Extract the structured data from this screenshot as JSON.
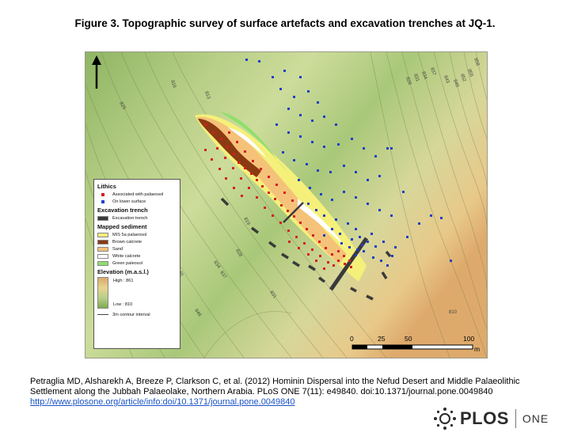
{
  "title": "Figure 3. Topographic survey of surface artefacts and excavation trenches at JQ-1.",
  "legend": {
    "lithics_header": "Lithics",
    "assoc_label": "Associated with palaeosol",
    "lower_label": "On lower surface",
    "trench_header": "Excavation trench",
    "trench_label": "Excavation trench",
    "sediment_header": "Mapped sediment",
    "sediments": [
      "MIS 5a palaeosol",
      "Brown calcrete",
      "Sand",
      "White calcrete",
      "Green paleosol"
    ],
    "elevation_header": "Elevation (m.a.s.l.)",
    "high_label": "High : 861",
    "low_label": "Low : 810",
    "contour_label": "3m contour interval"
  },
  "scale": {
    "ticks": [
      "0",
      "25",
      "50",
      "100"
    ],
    "unit": "m"
  },
  "contour_labels": [
    "816",
    "813",
    "825",
    "819",
    "828",
    "834",
    "837",
    "840",
    "831",
    "846",
    "810",
    "858",
    "855",
    "852",
    "849",
    "843",
    "837",
    "834",
    "831",
    "828"
  ],
  "colors": {
    "associated": "#d42020",
    "lower": "#1f3fc8",
    "mis5a": "#f5f07a",
    "brown_calcrete": "#8b3a12",
    "sand": "#f5c27a",
    "white_calcrete": "#ffffff",
    "green_paleosol": "#8ee06a",
    "trench": "#3a3a3a"
  },
  "citation": "Petraglia MD, Alsharekh A, Breeze P, Clarkson C, et al. (2012) Hominin Dispersal into the Nefud Desert and Middle Palaeolithic Settlement along the Jubbah Palaeolake, Northern Arabia. PLoS ONE 7(11): e49840. doi:10.1371/journal.pone.0049840",
  "link": "http://www.plosone.org/article/info:doi/10.1371/journal.pone.0049840",
  "logo": {
    "word": "PLOS",
    "sub": "ONE"
  }
}
